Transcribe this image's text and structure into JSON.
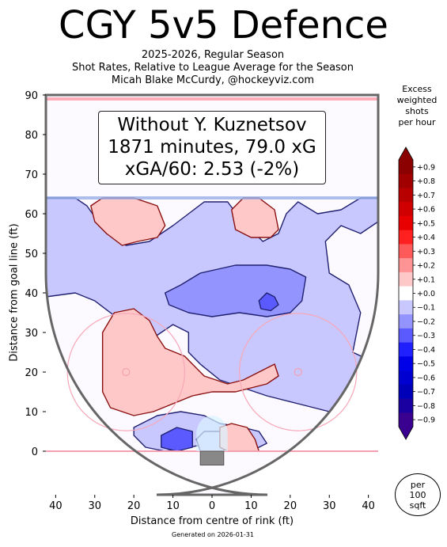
{
  "header": {
    "title": "CGY 5v5 Defence",
    "subtitle_1": "2025-2026, Regular Season",
    "subtitle_2": "Shot Rates, Relative to League Average for the Season",
    "subtitle_3": "Micah Blake McCurdy, @hockeyviz.com"
  },
  "footer": {
    "generated": "Generated on 2026-01-31"
  },
  "info_box": {
    "line_1": "Without Y. Kuznetsov",
    "line_2": "1871 minutes, 79.0 xG",
    "line_3": "xGA/60: 2.53 (-2%)"
  },
  "colorbar": {
    "title_lines": [
      "Excess",
      "weighted",
      "shots",
      "per hour"
    ],
    "levels": [
      "+0.9",
      "+0.8",
      "+0.7",
      "+0.6",
      "+0.5",
      "+0.4",
      "+0.3",
      "+0.2",
      "+0.1",
      "+0.0",
      "−0.1",
      "−0.2",
      "−0.3",
      "−0.4",
      "−0.5",
      "−0.6",
      "−0.7",
      "−0.8",
      "−0.9"
    ],
    "colors": [
      "#8b0000",
      "#a00000",
      "#b80000",
      "#d00000",
      "#e80000",
      "#ff2020",
      "#ff5a5a",
      "#ff9494",
      "#ffc8c8",
      "#ffffff",
      "#c8c8ff",
      "#9494ff",
      "#5a5aff",
      "#2020ff",
      "#0000e8",
      "#0000d0",
      "#0000b8",
      "#1a00a0",
      "#3a0090"
    ]
  },
  "per_badge": {
    "line_1": "per",
    "line_2": "100",
    "line_3": "sqft"
  },
  "chart_data": {
    "type": "heatmap",
    "xlabel": "Distance from centre of rink (ft)",
    "ylabel": "Distance from goal line (ft)",
    "xlim": [
      -42.5,
      42.5
    ],
    "ylim": [
      -11,
      90
    ],
    "x_ticks": [
      40,
      30,
      20,
      10,
      0,
      10,
      20,
      30,
      40
    ],
    "y_ticks": [
      0,
      10,
      20,
      30,
      40,
      50,
      60,
      70,
      80,
      90
    ],
    "grid": false,
    "regions": [
      {
        "sign": "negative",
        "level": -0.1,
        "points": [
          [
            -42.5,
            64
          ],
          [
            -35,
            64
          ],
          [
            -32,
            62
          ],
          [
            -27,
            55
          ],
          [
            -22,
            52
          ],
          [
            -16,
            53
          ],
          [
            -10,
            57
          ],
          [
            -6,
            60
          ],
          [
            -2,
            63
          ],
          [
            4,
            63
          ],
          [
            7,
            59
          ],
          [
            13,
            53
          ],
          [
            17,
            55
          ],
          [
            19,
            60
          ],
          [
            22,
            63
          ],
          [
            27,
            60
          ],
          [
            33,
            61
          ],
          [
            38,
            64
          ],
          [
            42.5,
            64
          ],
          [
            42.5,
            58
          ],
          [
            38,
            55
          ],
          [
            33,
            57
          ],
          [
            29,
            53
          ],
          [
            30,
            45
          ],
          [
            35,
            42
          ],
          [
            38,
            35
          ],
          [
            36,
            25
          ],
          [
            42.5,
            22
          ],
          [
            42.5,
            10
          ],
          [
            36,
            8
          ],
          [
            30,
            10
          ],
          [
            22,
            12
          ],
          [
            14,
            14
          ],
          [
            8,
            16
          ],
          [
            2,
            18
          ],
          [
            -3,
            22
          ],
          [
            -6,
            25
          ],
          [
            -6,
            30
          ],
          [
            -10,
            32
          ],
          [
            -16,
            28
          ],
          [
            -22,
            32
          ],
          [
            -30,
            38
          ],
          [
            -35,
            40
          ],
          [
            -42.5,
            39
          ]
        ]
      },
      {
        "sign": "negative",
        "level": -0.2,
        "points": [
          [
            -12,
            40
          ],
          [
            -8,
            42
          ],
          [
            -3,
            45
          ],
          [
            6,
            47
          ],
          [
            14,
            47
          ],
          [
            20,
            46
          ],
          [
            24,
            44
          ],
          [
            23,
            38
          ],
          [
            20,
            35
          ],
          [
            14,
            34
          ],
          [
            7,
            35
          ],
          [
            0,
            34
          ],
          [
            -6,
            35
          ],
          [
            -11,
            37
          ]
        ]
      },
      {
        "sign": "negative",
        "level": -0.3,
        "points": [
          [
            12,
            38
          ],
          [
            14,
            40
          ],
          [
            16,
            39
          ],
          [
            17,
            37
          ],
          [
            15,
            35.5
          ],
          [
            12.5,
            36
          ]
        ]
      },
      {
        "sign": "negative",
        "level": -0.1,
        "points": [
          [
            -20,
            6
          ],
          [
            -14,
            9
          ],
          [
            -8,
            10
          ],
          [
            -2,
            9
          ],
          [
            2,
            7
          ],
          [
            8,
            6
          ],
          [
            12,
            5
          ],
          [
            14,
            2
          ],
          [
            10,
            0
          ],
          [
            4,
            0
          ],
          [
            0,
            2
          ],
          [
            -6,
            1
          ],
          [
            -12,
            0
          ],
          [
            -17,
            1
          ],
          [
            -20,
            4
          ]
        ]
      },
      {
        "sign": "negative",
        "level": -0.3,
        "points": [
          [
            -13,
            4
          ],
          [
            -9,
            6
          ],
          [
            -5,
            5
          ],
          [
            -5,
            1
          ],
          [
            -9,
            0
          ],
          [
            -13,
            1
          ]
        ]
      },
      {
        "sign": "negative",
        "level": -0.1,
        "points": [
          [
            -4,
            3
          ],
          [
            -2,
            5
          ],
          [
            2,
            5
          ],
          [
            4,
            3
          ],
          [
            3,
            0
          ],
          [
            -3,
            0
          ]
        ]
      },
      {
        "sign": "positive",
        "level": 0.1,
        "points": [
          [
            -28,
            20
          ],
          [
            -28,
            30
          ],
          [
            -25,
            35
          ],
          [
            -20,
            36
          ],
          [
            -16,
            33
          ],
          [
            -14,
            29
          ],
          [
            -12,
            26
          ],
          [
            -7,
            24
          ],
          [
            -2,
            19
          ],
          [
            4,
            17
          ],
          [
            8,
            18
          ],
          [
            12,
            20
          ],
          [
            16,
            22
          ],
          [
            17,
            19
          ],
          [
            14,
            17
          ],
          [
            6,
            15
          ],
          [
            0,
            15
          ],
          [
            -5,
            14
          ],
          [
            -10,
            12
          ],
          [
            -15,
            10
          ],
          [
            -20,
            9
          ],
          [
            -26,
            11
          ],
          [
            -28,
            15
          ]
        ]
      },
      {
        "sign": "positive",
        "level": 0.1,
        "points": [
          [
            -31,
            62
          ],
          [
            -28,
            64
          ],
          [
            -20,
            64
          ],
          [
            -14,
            62
          ],
          [
            -12,
            57
          ],
          [
            -14,
            54
          ],
          [
            -19,
            53
          ],
          [
            -23,
            52
          ],
          [
            -27,
            55
          ],
          [
            -30,
            58
          ]
        ]
      },
      {
        "sign": "positive",
        "level": 0.1,
        "points": [
          [
            5,
            61
          ],
          [
            8,
            64
          ],
          [
            12,
            64
          ],
          [
            16,
            61
          ],
          [
            17,
            56
          ],
          [
            15,
            54
          ],
          [
            10,
            54
          ],
          [
            6,
            56
          ]
        ]
      },
      {
        "sign": "positive",
        "level": 0.1,
        "points": [
          [
            2,
            1
          ],
          [
            2,
            6
          ],
          [
            5,
            7
          ],
          [
            9,
            6
          ],
          [
            11,
            3
          ],
          [
            12,
            0
          ],
          [
            8,
            0
          ],
          [
            4,
            0
          ]
        ]
      }
    ]
  }
}
